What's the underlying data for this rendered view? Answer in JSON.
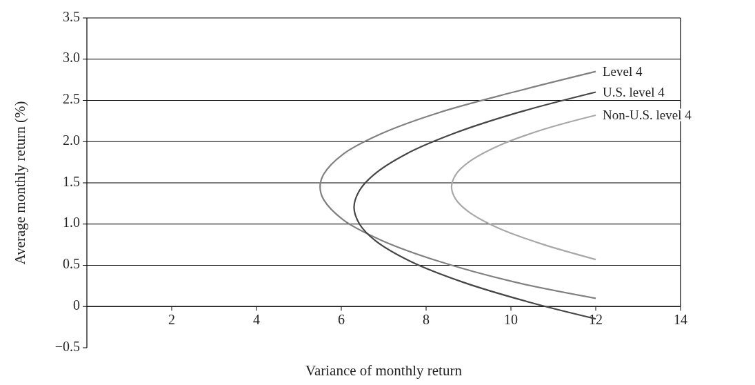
{
  "chart_data": {
    "type": "line",
    "xlabel": "Variance of monthly return",
    "ylabel": "Average monthly return (%)",
    "xlim": [
      0,
      14
    ],
    "xticks": [
      2,
      4,
      6,
      8,
      10,
      12,
      14
    ],
    "ylim": [
      -0.5,
      3.5
    ],
    "yticks": [
      {
        "value": -0.5,
        "label": "−0.5"
      },
      0,
      {
        "value": 0.5,
        "label": "0.5"
      },
      {
        "value": 1,
        "label": "1.0"
      },
      {
        "value": 1.5,
        "label": "1.5"
      },
      {
        "value": 2,
        "label": "2.0"
      },
      {
        "value": 2.5,
        "label": "2.5"
      },
      {
        "value": 3,
        "label": "3.0"
      },
      {
        "value": 3.5,
        "label": "3.5"
      }
    ],
    "grid": "y",
    "series": [
      {
        "name": "Level 4",
        "color": "#808080",
        "x": [
          12.0,
          10.06,
          8.29,
          6.96,
          6.05,
          5.58,
          5.5,
          5.58,
          6.05,
          6.96,
          8.29,
          10.06,
          12.0
        ],
        "values": [
          2.85,
          2.6,
          2.35,
          2.1,
          1.85,
          1.6,
          1.45,
          1.3,
          1.05,
          0.8,
          0.55,
          0.3,
          0.1
        ]
      },
      {
        "name": "U.S. level 4",
        "color": "#454545",
        "x": [
          12.0,
          10.15,
          8.66,
          7.53,
          6.77,
          6.42,
          6.3,
          6.43,
          6.8,
          7.62,
          8.84,
          10.45,
          12.0
        ],
        "values": [
          2.6,
          2.35,
          2.1,
          1.85,
          1.6,
          1.4,
          1.2,
          1.0,
          0.8,
          0.55,
          0.3,
          0.05,
          -0.15
        ]
      },
      {
        "name": "Non-U.S. level 4",
        "color": "#a8a8a8",
        "x": [
          12.0,
          10.78,
          9.71,
          9.0,
          8.7,
          8.6,
          8.7,
          9.0,
          9.71,
          10.78,
          12.0
        ],
        "values": [
          2.32,
          2.15,
          1.95,
          1.75,
          1.6,
          1.45,
          1.3,
          1.15,
          0.95,
          0.75,
          0.57
        ]
      }
    ]
  }
}
